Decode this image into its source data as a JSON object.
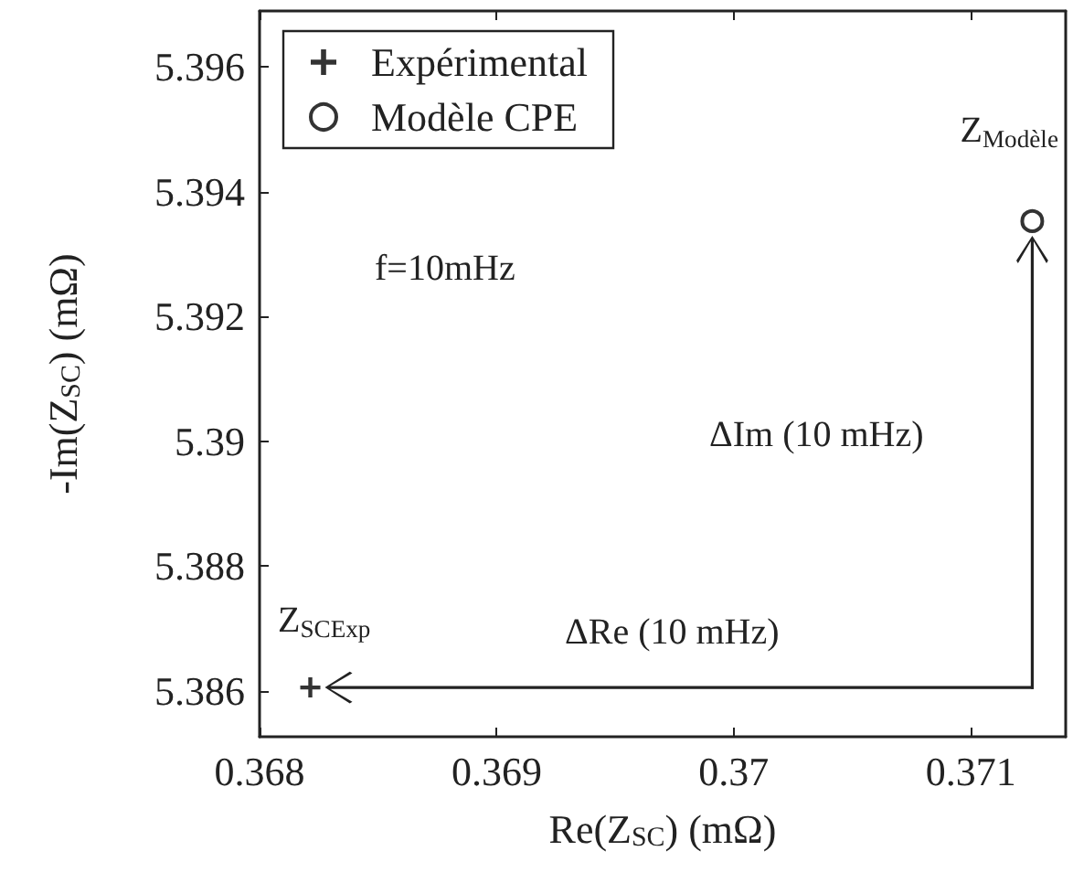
{
  "chart_data": {
    "type": "scatter",
    "xlabel": "Re(Z$_{SC}$) (mΩ)",
    "ylabel": "-Im(Z$_{SC}$) (mΩ)",
    "series": [
      {
        "name": "Expérimental",
        "color": "#000000",
        "marker": "cross",
        "x": [
          0.368214
        ],
        "values": [
          5.38605
        ]
      },
      {
        "name": "Modèle CPE",
        "color": "#000000",
        "marker": "circle",
        "x": [
          0.371259
        ],
        "values": [
          5.39353
        ]
      }
    ],
    "xlim": [
      0.368,
      0.3714
    ],
    "xticks": [
      0.368,
      0.369,
      0.37,
      0.371
    ],
    "ylim": [
      5.38526,
      5.3969
    ],
    "yticks": [
      5.386,
      5.388,
      5.39,
      5.392,
      5.394,
      5.396
    ],
    "annotations": [
      "f=10mHz",
      "Z$_{SCExp}$",
      "Z$_{Modèle}$",
      "ΔRe (10 mHz)",
      "ΔIm (10 mHz)"
    ],
    "grid": false,
    "legend": "top left"
  }
}
